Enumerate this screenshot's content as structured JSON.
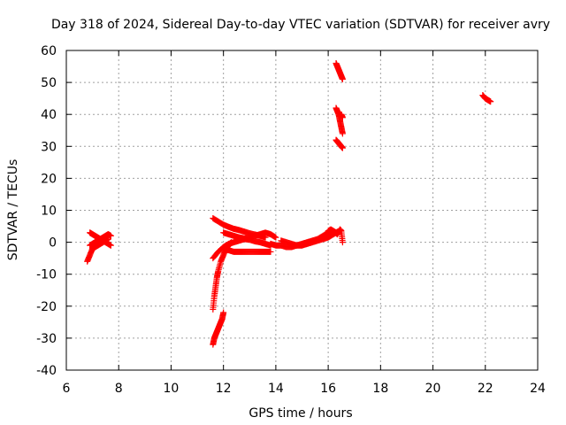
{
  "chart_data": {
    "type": "scatter",
    "title": "Day 318 of 2024, Sidereal Day-to-day VTEC variation (SDTVAR) for receiver avry",
    "xlabel": "GPS time / hours",
    "ylabel": "SDTVAR / TECUs",
    "xlim": [
      6,
      24
    ],
    "ylim": [
      -40,
      60
    ],
    "xticks": [
      6,
      8,
      10,
      12,
      14,
      16,
      18,
      20,
      22,
      24
    ],
    "yticks": [
      -40,
      -30,
      -20,
      -10,
      0,
      10,
      20,
      30,
      40,
      50,
      60
    ],
    "xtick_labels": [
      "6",
      "8",
      "10",
      "12",
      "14",
      "16",
      "18",
      "20",
      "22",
      "24"
    ],
    "ytick_labels": [
      "-40",
      "-30",
      "-20",
      "-10",
      "0",
      "10",
      "20",
      "30",
      "40",
      "50",
      "60"
    ],
    "grid": true,
    "marker": "+",
    "color": "#ff0000",
    "series": [
      {
        "name": "avry",
        "segments": [
          {
            "x": [
              6.8,
              6.9,
              7.0,
              7.1,
              7.2
            ],
            "y": [
              -6,
              -4,
              -2,
              -1,
              0
            ]
          },
          {
            "x": [
              6.9,
              7.0,
              7.1,
              7.2,
              7.3,
              7.4,
              7.5,
              7.6,
              7.7
            ],
            "y": [
              3,
              2.5,
              2,
              1.5,
              1,
              0.5,
              0,
              -0.5,
              -1
            ]
          },
          {
            "x": [
              6.9,
              7.0,
              7.1,
              7.2,
              7.3,
              7.4,
              7.5,
              7.6,
              7.7
            ],
            "y": [
              -1,
              -0.5,
              0,
              0.5,
              1,
              1.5,
              2,
              2.5,
              2
            ]
          },
          {
            "x": [
              7.0,
              7.1,
              7.2,
              7.3,
              7.4,
              7.5,
              7.6
            ],
            "y": [
              -2,
              -1.5,
              -1,
              -0.5,
              0,
              0.5,
              1
            ]
          },
          {
            "x": [
              11.6,
              11.8,
              12.0,
              12.2,
              12.4,
              12.6,
              12.8,
              13.0,
              13.2,
              13.4,
              13.6
            ],
            "y": [
              7.5,
              6.5,
              5.5,
              4.8,
              4.2,
              3.8,
              3.3,
              2.8,
              2.4,
              2.0,
              1.5
            ]
          },
          {
            "x": [
              12.0,
              12.2,
              12.4,
              12.6,
              12.8,
              13.0,
              13.2,
              13.4,
              13.6,
              13.8,
              14.0
            ],
            "y": [
              3,
              2.5,
              2,
              1.5,
              1.2,
              1.5,
              2,
              2.5,
              3,
              2.5,
              1.5
            ]
          },
          {
            "x": [
              11.6,
              11.8,
              12.0,
              12.2,
              12.4,
              12.6,
              12.8,
              13.0,
              13.2,
              13.4,
              13.6,
              13.8
            ],
            "y": [
              -5,
              -3,
              -1.5,
              -0.5,
              0,
              0.5,
              1,
              0.8,
              0.3,
              0,
              -0.5,
              -1
            ]
          },
          {
            "x": [
              12.0,
              12.2,
              12.4,
              12.6,
              12.8,
              13.0,
              13.2,
              13.4,
              13.6,
              13.8
            ],
            "y": [
              -2,
              -2.5,
              -3,
              -3,
              -3,
              -3,
              -3,
              -3,
              -3,
              -3
            ]
          },
          {
            "x": [
              11.6,
              11.65,
              11.7,
              11.75,
              11.8,
              11.9,
              12.0,
              12.1,
              12.2,
              12.3
            ],
            "y": [
              -21,
              -17,
              -14,
              -11,
              -9,
              -6,
              -4,
              -2,
              -1,
              0
            ]
          },
          {
            "x": [
              11.6,
              11.65,
              11.7,
              11.75,
              11.8,
              11.85,
              11.9,
              11.95,
              12.0
            ],
            "y": [
              -32,
              -30,
              -29,
              -28,
              -27,
              -26,
              -25,
              -24,
              -22
            ]
          },
          {
            "x": [
              13.8,
              14.0,
              14.2,
              14.4,
              14.6,
              14.8,
              15.0,
              15.2,
              15.4,
              15.6,
              15.8,
              16.0
            ],
            "y": [
              -0.5,
              -1,
              -1,
              -1.5,
              -1.5,
              -1,
              -0.5,
              0,
              0.5,
              1,
              2,
              3
            ]
          },
          {
            "x": [
              14.2,
              14.4,
              14.6,
              14.8,
              15.0,
              15.2,
              15.4,
              15.6,
              15.8,
              16.0,
              16.2,
              16.4
            ],
            "y": [
              0.5,
              0,
              -0.5,
              -1,
              -1,
              -0.5,
              0,
              0.5,
              1,
              1.5,
              2.5,
              3.5
            ]
          },
          {
            "x": [
              16.0,
              16.1,
              16.2,
              16.3,
              16.35,
              16.45,
              16.5,
              16.55
            ],
            "y": [
              3.5,
              4,
              3.5,
              3,
              2.5,
              4,
              3.5,
              0
            ]
          },
          {
            "x": [
              16.3,
              16.35,
              16.4,
              16.45,
              16.5,
              16.55
            ],
            "y": [
              56,
              55,
              54,
              53,
              52,
              51
            ]
          },
          {
            "x": [
              16.3,
              16.35,
              16.4,
              16.45,
              16.5,
              16.55
            ],
            "y": [
              42,
              41,
              40,
              38,
              36,
              34
            ]
          },
          {
            "x": [
              16.3,
              16.35,
              16.4,
              16.45,
              16.5,
              16.55
            ],
            "y": [
              32,
              31.5,
              31,
              30.5,
              30,
              29.5
            ]
          },
          {
            "x": [
              16.5,
              16.55
            ],
            "y": [
              40,
              39
            ]
          },
          {
            "x": [
              21.9,
              22.0,
              22.1,
              22.2
            ],
            "y": [
              46,
              45,
              44.5,
              44
            ]
          }
        ]
      }
    ]
  }
}
